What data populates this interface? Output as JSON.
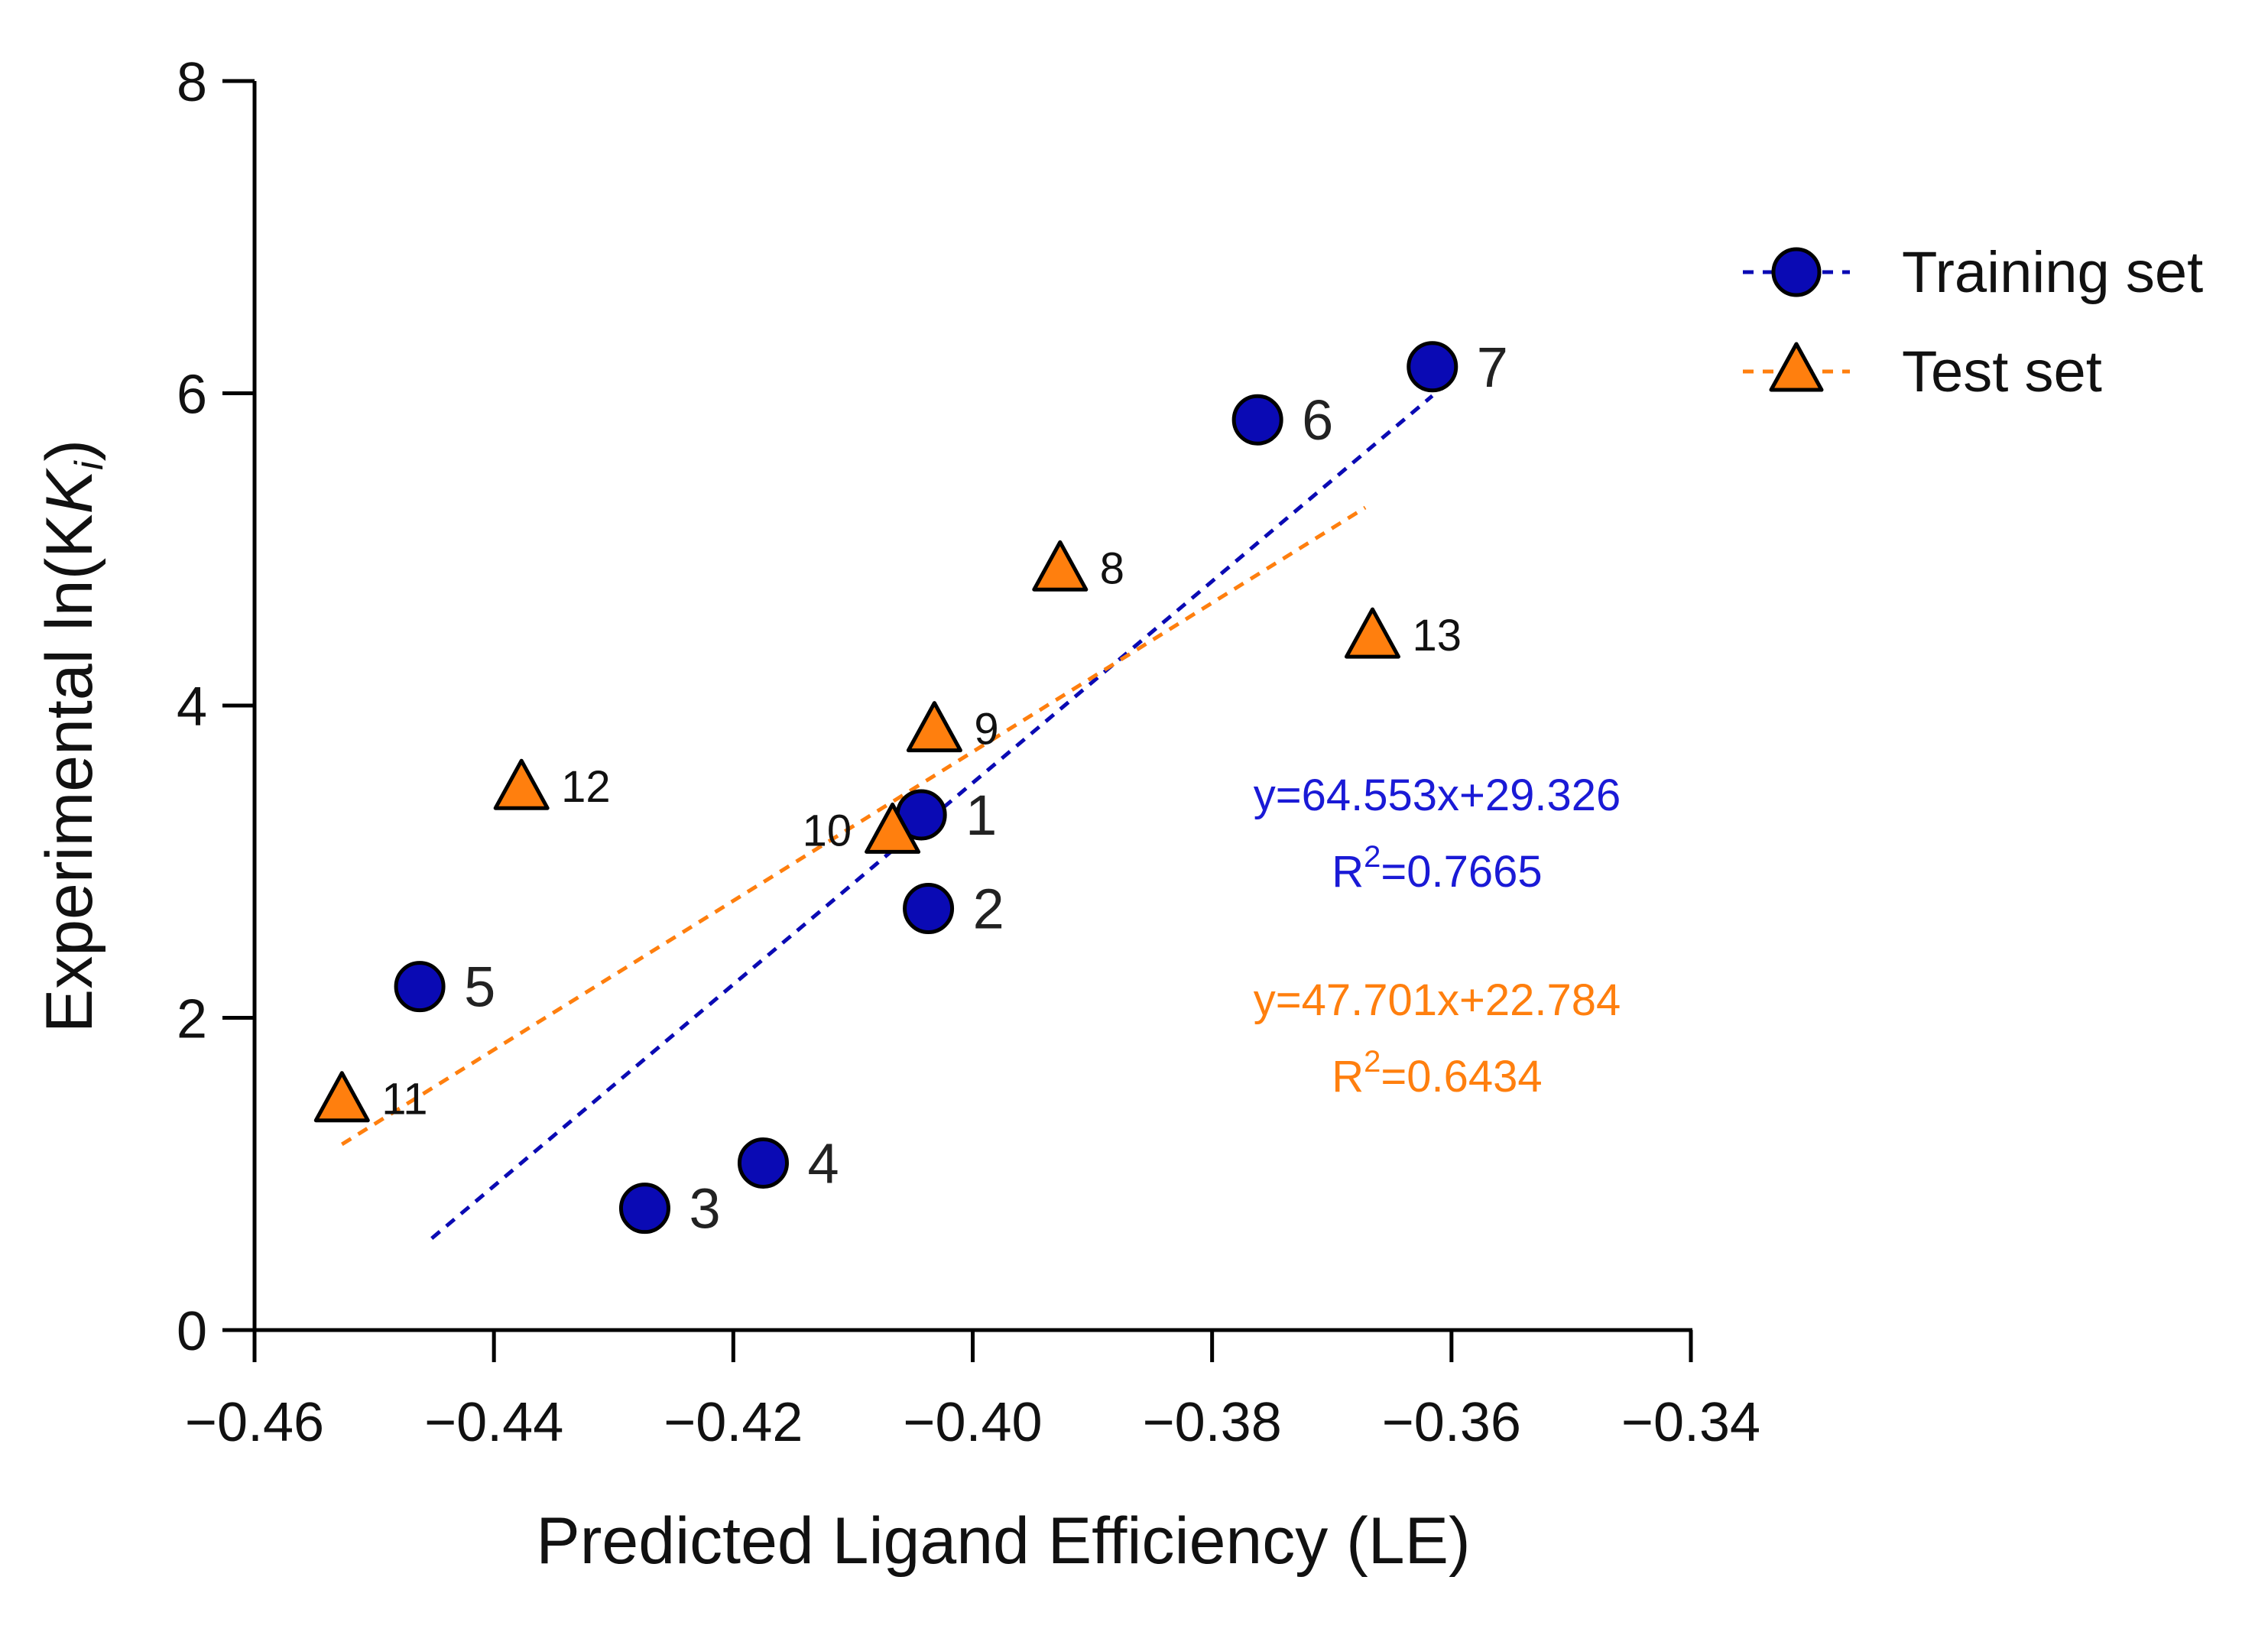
{
  "chart_data": {
    "type": "scatter",
    "xlabel": "Predicted Ligand Efficiency (LE)",
    "ylabel": "Experimental ln(K",
    "ylabel_sub": "i",
    "ylabel_close": ")",
    "xlim": [
      -0.46,
      -0.34
    ],
    "ylim": [
      0,
      8
    ],
    "x_ticks": [
      -0.46,
      -0.44,
      -0.42,
      -0.4,
      -0.38,
      -0.36,
      -0.34
    ],
    "x_tick_labels": [
      "−0.46",
      "−0.44",
      "−0.42",
      "−0.40",
      "−0.38",
      "−0.36",
      "−0.34"
    ],
    "y_ticks": [
      0,
      2,
      4,
      6,
      8
    ],
    "y_tick_labels": [
      "0",
      "2",
      "4",
      "6",
      "8"
    ],
    "grid": false,
    "legend_position": "top-right-outside",
    "series": [
      {
        "name": "Training set",
        "marker": "circle",
        "color": "#0a0ab4",
        "points": [
          {
            "label": "1",
            "x": -0.4043,
            "y": 3.3
          },
          {
            "label": "2",
            "x": -0.4037,
            "y": 2.7
          },
          {
            "label": "3",
            "x": -0.4274,
            "y": 0.78
          },
          {
            "label": "4",
            "x": -0.4175,
            "y": 1.07
          },
          {
            "label": "5",
            "x": -0.4462,
            "y": 2.2
          },
          {
            "label": "6",
            "x": -0.3762,
            "y": 5.83
          },
          {
            "label": "7",
            "x": -0.3616,
            "y": 6.17
          }
        ],
        "fit": {
          "slope": 64.553,
          "intercept": 29.326,
          "x_range": [
            -0.4452,
            -0.3616
          ],
          "equation": "y=64.553x+29.326",
          "r2_prefix": "R",
          "r2_value": "=0.7665"
        }
      },
      {
        "name": "Test set",
        "marker": "triangle",
        "color": "#ff7f0e",
        "points": [
          {
            "label": "8",
            "x": -0.3927,
            "y": 4.88
          },
          {
            "label": "9",
            "x": -0.4032,
            "y": 3.85
          },
          {
            "label": "10",
            "x": -0.4067,
            "y": 3.2
          },
          {
            "label": "11",
            "x": -0.4527,
            "y": 1.48
          },
          {
            "label": "12",
            "x": -0.4377,
            "y": 3.48
          },
          {
            "label": "13",
            "x": -0.3666,
            "y": 4.45
          }
        ],
        "fit": {
          "slope": 47.701,
          "intercept": 22.784,
          "x_range": [
            -0.4527,
            -0.3672
          ],
          "equation": "y=47.701x+22.784",
          "r2_prefix": "R",
          "r2_value": "=0.6434"
        }
      }
    ]
  }
}
